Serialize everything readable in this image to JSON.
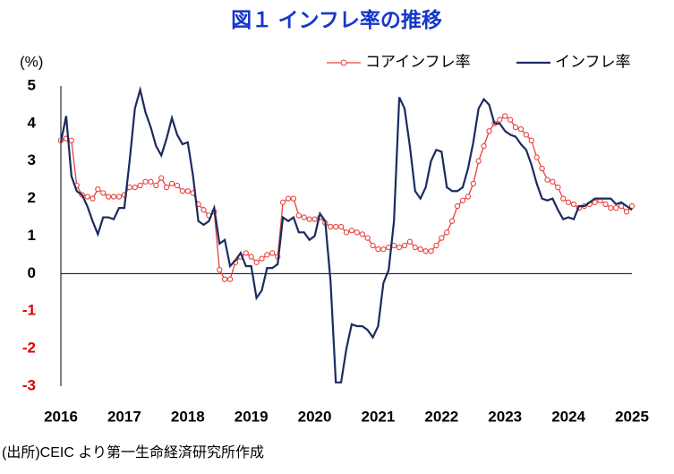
{
  "chart_data": {
    "type": "line",
    "title": "図１ インフレ率の推移",
    "title_color": "#1537c9",
    "y_unit": "(%)",
    "source": "(出所)CEIC より第一生命経済研究所作成",
    "categories": [
      "2016",
      null,
      null,
      null,
      null,
      null,
      null,
      null,
      null,
      null,
      null,
      null,
      "2017",
      null,
      null,
      null,
      null,
      null,
      null,
      null,
      null,
      null,
      null,
      null,
      "2018",
      null,
      null,
      null,
      null,
      null,
      null,
      null,
      null,
      null,
      null,
      null,
      "2019",
      null,
      null,
      null,
      null,
      null,
      null,
      null,
      null,
      null,
      null,
      null,
      "2020",
      null,
      null,
      null,
      null,
      null,
      null,
      null,
      null,
      null,
      null,
      null,
      "2021",
      null,
      null,
      null,
      null,
      null,
      null,
      null,
      null,
      null,
      null,
      null,
      "2022",
      null,
      null,
      null,
      null,
      null,
      null,
      null,
      null,
      null,
      null,
      null,
      "2023",
      null,
      null,
      null,
      null,
      null,
      null,
      null,
      null,
      null,
      null,
      null,
      "2024",
      null,
      null,
      null,
      null,
      null,
      null,
      null,
      null,
      null,
      null,
      null,
      "2025"
    ],
    "series": [
      {
        "name": "コアインフレ率",
        "color": "#e8413c",
        "marker": "circle",
        "values": [
          3.55,
          3.6,
          3.55,
          2.35,
          2.1,
          2.05,
          2.0,
          2.25,
          2.15,
          2.05,
          2.05,
          2.05,
          2.1,
          2.3,
          2.3,
          2.35,
          2.45,
          2.45,
          2.35,
          2.55,
          2.3,
          2.4,
          2.35,
          2.2,
          2.2,
          2.15,
          1.85,
          1.7,
          1.55,
          1.65,
          0.1,
          -0.15,
          -0.15,
          0.3,
          0.45,
          0.55,
          0.45,
          0.3,
          0.4,
          0.5,
          0.55,
          0.45,
          1.9,
          2.0,
          2.0,
          1.55,
          1.5,
          1.45,
          1.45,
          1.5,
          1.35,
          1.25,
          1.25,
          1.25,
          1.1,
          1.15,
          1.1,
          1.05,
          0.95,
          0.75,
          0.65,
          0.65,
          0.7,
          0.75,
          0.7,
          0.75,
          0.85,
          0.7,
          0.65,
          0.6,
          0.6,
          0.75,
          0.95,
          1.1,
          1.4,
          1.8,
          1.95,
          2.05,
          2.4,
          3.0,
          3.4,
          3.8,
          4.0,
          4.1,
          4.2,
          4.1,
          3.9,
          3.85,
          3.7,
          3.55,
          3.1,
          2.8,
          2.5,
          2.45,
          2.3,
          2.0,
          1.9,
          1.85,
          1.75,
          1.8,
          1.85,
          1.9,
          1.95,
          1.85,
          1.75,
          1.75,
          1.8,
          1.65,
          1.8
        ]
      },
      {
        "name": "インフレ率",
        "color": "#1c2a5e",
        "values": [
          3.5,
          4.2,
          2.6,
          2.2,
          2.1,
          1.8,
          1.4,
          1.05,
          1.5,
          1.5,
          1.45,
          1.75,
          1.75,
          3.0,
          4.4,
          4.9,
          4.3,
          3.9,
          3.4,
          3.15,
          3.6,
          4.15,
          3.7,
          3.45,
          3.5,
          2.6,
          1.4,
          1.3,
          1.4,
          1.75,
          0.8,
          0.9,
          0.2,
          0.35,
          0.55,
          0.2,
          0.2,
          -0.65,
          -0.45,
          0.15,
          0.15,
          0.25,
          1.5,
          1.4,
          1.5,
          1.1,
          1.1,
          0.9,
          1.0,
          1.6,
          1.4,
          -0.2,
          -2.9,
          -2.9,
          -2.0,
          -1.35,
          -1.4,
          -1.4,
          -1.5,
          -1.7,
          -1.4,
          -0.25,
          0.1,
          1.4,
          4.7,
          4.4,
          3.4,
          2.2,
          2.0,
          2.3,
          3.0,
          3.3,
          3.25,
          2.3,
          2.2,
          2.2,
          2.3,
          2.8,
          3.5,
          4.4,
          4.65,
          4.5,
          4.0,
          4.0,
          3.8,
          3.7,
          3.65,
          3.45,
          3.3,
          2.9,
          2.4,
          2.0,
          1.95,
          2.0,
          1.7,
          1.45,
          1.5,
          1.45,
          1.8,
          1.8,
          1.9,
          2.0,
          2.0,
          2.0,
          2.0,
          1.85,
          1.9,
          1.8,
          1.7
        ]
      }
    ],
    "ylim": [
      -3,
      5
    ],
    "yticks": [
      -3,
      -2,
      -1,
      0,
      1,
      2,
      3,
      4,
      5
    ],
    "negative_tick_color": "#e00000",
    "grid": false,
    "legend": "top-right"
  }
}
